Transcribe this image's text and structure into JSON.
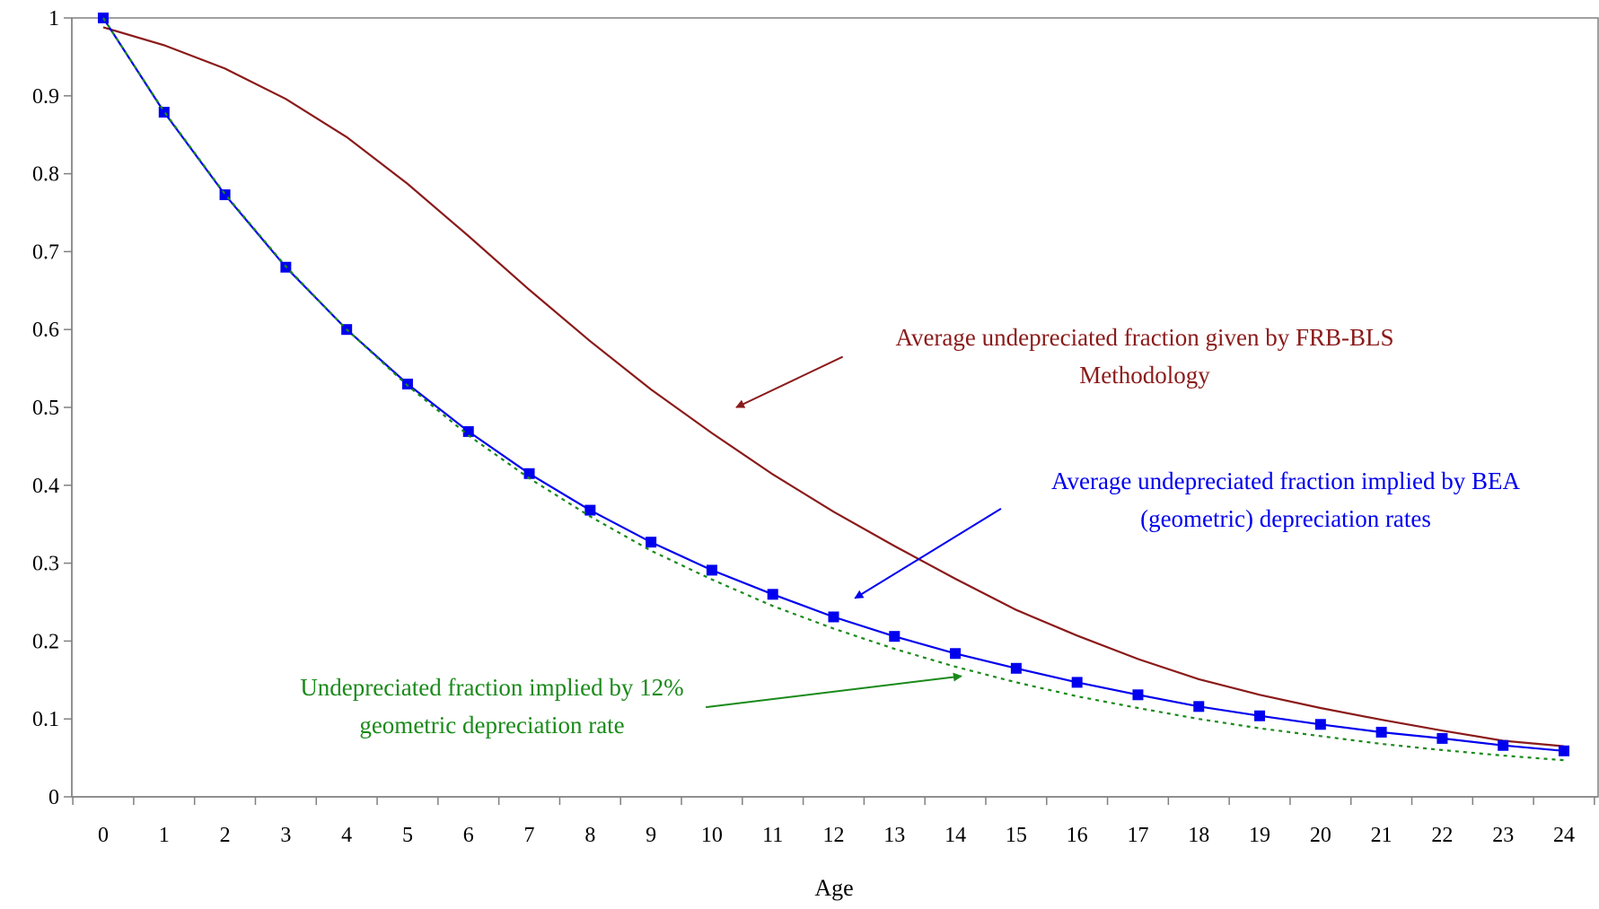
{
  "chart_data": {
    "type": "line",
    "title": "",
    "xlabel": "Age",
    "ylabel": "",
    "xlim": [
      0,
      24
    ],
    "ylim": [
      0,
      1
    ],
    "x": [
      0,
      1,
      2,
      3,
      4,
      5,
      6,
      7,
      8,
      9,
      10,
      11,
      12,
      13,
      14,
      15,
      16,
      17,
      18,
      19,
      20,
      21,
      22,
      23,
      24
    ],
    "x_tick_labels": [
      "0",
      "1",
      "2",
      "3",
      "4",
      "5",
      "6",
      "7",
      "8",
      "9",
      "10",
      "11",
      "12",
      "13",
      "14",
      "15",
      "16",
      "17",
      "18",
      "19",
      "20",
      "21",
      "22",
      "23",
      "24"
    ],
    "y_ticks": [
      0,
      0.1,
      0.2,
      0.3,
      0.4,
      0.5,
      0.6,
      0.7,
      0.8,
      0.9,
      1
    ],
    "y_tick_labels": [
      "0",
      "0.1",
      "0.2",
      "0.3",
      "0.4",
      "0.5",
      "0.6",
      "0.7",
      "0.8",
      "0.9",
      "1"
    ],
    "grid": false,
    "legend": "none",
    "series": [
      {
        "key": "frb",
        "color": "#8b1a1a",
        "style": "solid",
        "marker": "none",
        "values": [
          0.988,
          0.965,
          0.935,
          0.896,
          0.847,
          0.787,
          0.72,
          0.651,
          0.585,
          0.523,
          0.467,
          0.414,
          0.366,
          0.322,
          0.28,
          0.24,
          0.207,
          0.177,
          0.151,
          0.131,
          0.114,
          0.099,
          0.085,
          0.072,
          0.065
        ]
      },
      {
        "key": "bea",
        "color": "#0000ee",
        "style": "solid",
        "marker": "square",
        "values": [
          1,
          0.879,
          0.773,
          0.68,
          0.6,
          0.53,
          0.469,
          0.415,
          0.368,
          0.327,
          0.291,
          0.26,
          0.231,
          0.206,
          0.184,
          0.165,
          0.147,
          0.131,
          0.116,
          0.104,
          0.093,
          0.083,
          0.075,
          0.066,
          0.059
        ]
      },
      {
        "key": "geo12",
        "color": "#1a8a1a",
        "style": "dotted",
        "marker": "none",
        "values": [
          1,
          0.88,
          0.774,
          0.681,
          0.6,
          0.528,
          0.464,
          0.409,
          0.36,
          0.316,
          0.279,
          0.245,
          0.216,
          0.19,
          0.167,
          0.147,
          0.129,
          0.114,
          0.1,
          0.088,
          0.078,
          0.068,
          0.06,
          0.053,
          0.047
        ]
      }
    ],
    "annotations": [
      {
        "key": "frb",
        "lines": [
          "Average undepreciated fraction given by FRB-BLS",
          "Methodology"
        ],
        "color": "#8b1a1a",
        "arrow_from": [
          12.15,
          0.565
        ],
        "arrow_to": [
          10.4,
          0.5
        ]
      },
      {
        "key": "bea",
        "lines": [
          "Average undepreciated fraction implied by BEA",
          "(geometric) depreciation rates"
        ],
        "color": "#0000ee",
        "arrow_from": [
          14.75,
          0.37
        ],
        "arrow_to": [
          12.35,
          0.255
        ]
      },
      {
        "key": "geo12",
        "lines": [
          "Undepreciated fraction implied by 12%",
          "geometric depreciation rate"
        ],
        "color": "#1a8a1a",
        "arrow_from": [
          9.9,
          0.115
        ],
        "arrow_to": [
          14.1,
          0.155
        ]
      }
    ]
  }
}
